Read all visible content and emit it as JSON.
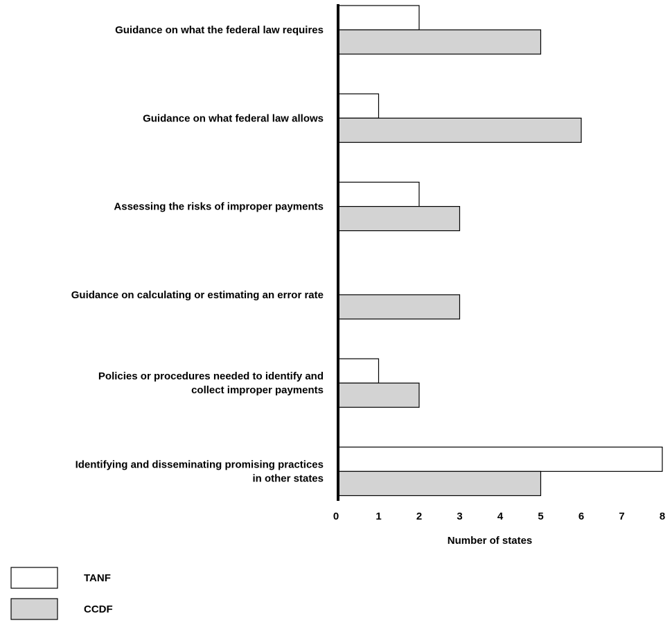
{
  "chart_data": {
    "type": "bar",
    "orientation": "horizontal",
    "categories": [
      [
        "Guidance on what the federal law requires"
      ],
      [
        "Guidance on what federal law allows"
      ],
      [
        "Assessing the risks of improper payments"
      ],
      [
        "Guidance on calculating or estimating an error rate"
      ],
      [
        "Policies or procedures needed to identify and",
        "collect improper payments"
      ],
      [
        "Identifying and disseminating promising practices",
        "in other states"
      ]
    ],
    "series": [
      {
        "name": "TANF",
        "color": "#ffffff",
        "values": [
          2,
          1,
          2,
          0,
          1,
          8
        ]
      },
      {
        "name": "CCDF",
        "color": "#d3d3d3",
        "values": [
          5,
          6,
          3,
          3,
          2,
          5
        ]
      }
    ],
    "xlabel": "Number of states",
    "xlim": [
      0,
      8
    ],
    "xticks": [
      0,
      1,
      2,
      3,
      4,
      5,
      6,
      7,
      8
    ],
    "grid": false,
    "legend_position": "bottom-left"
  }
}
